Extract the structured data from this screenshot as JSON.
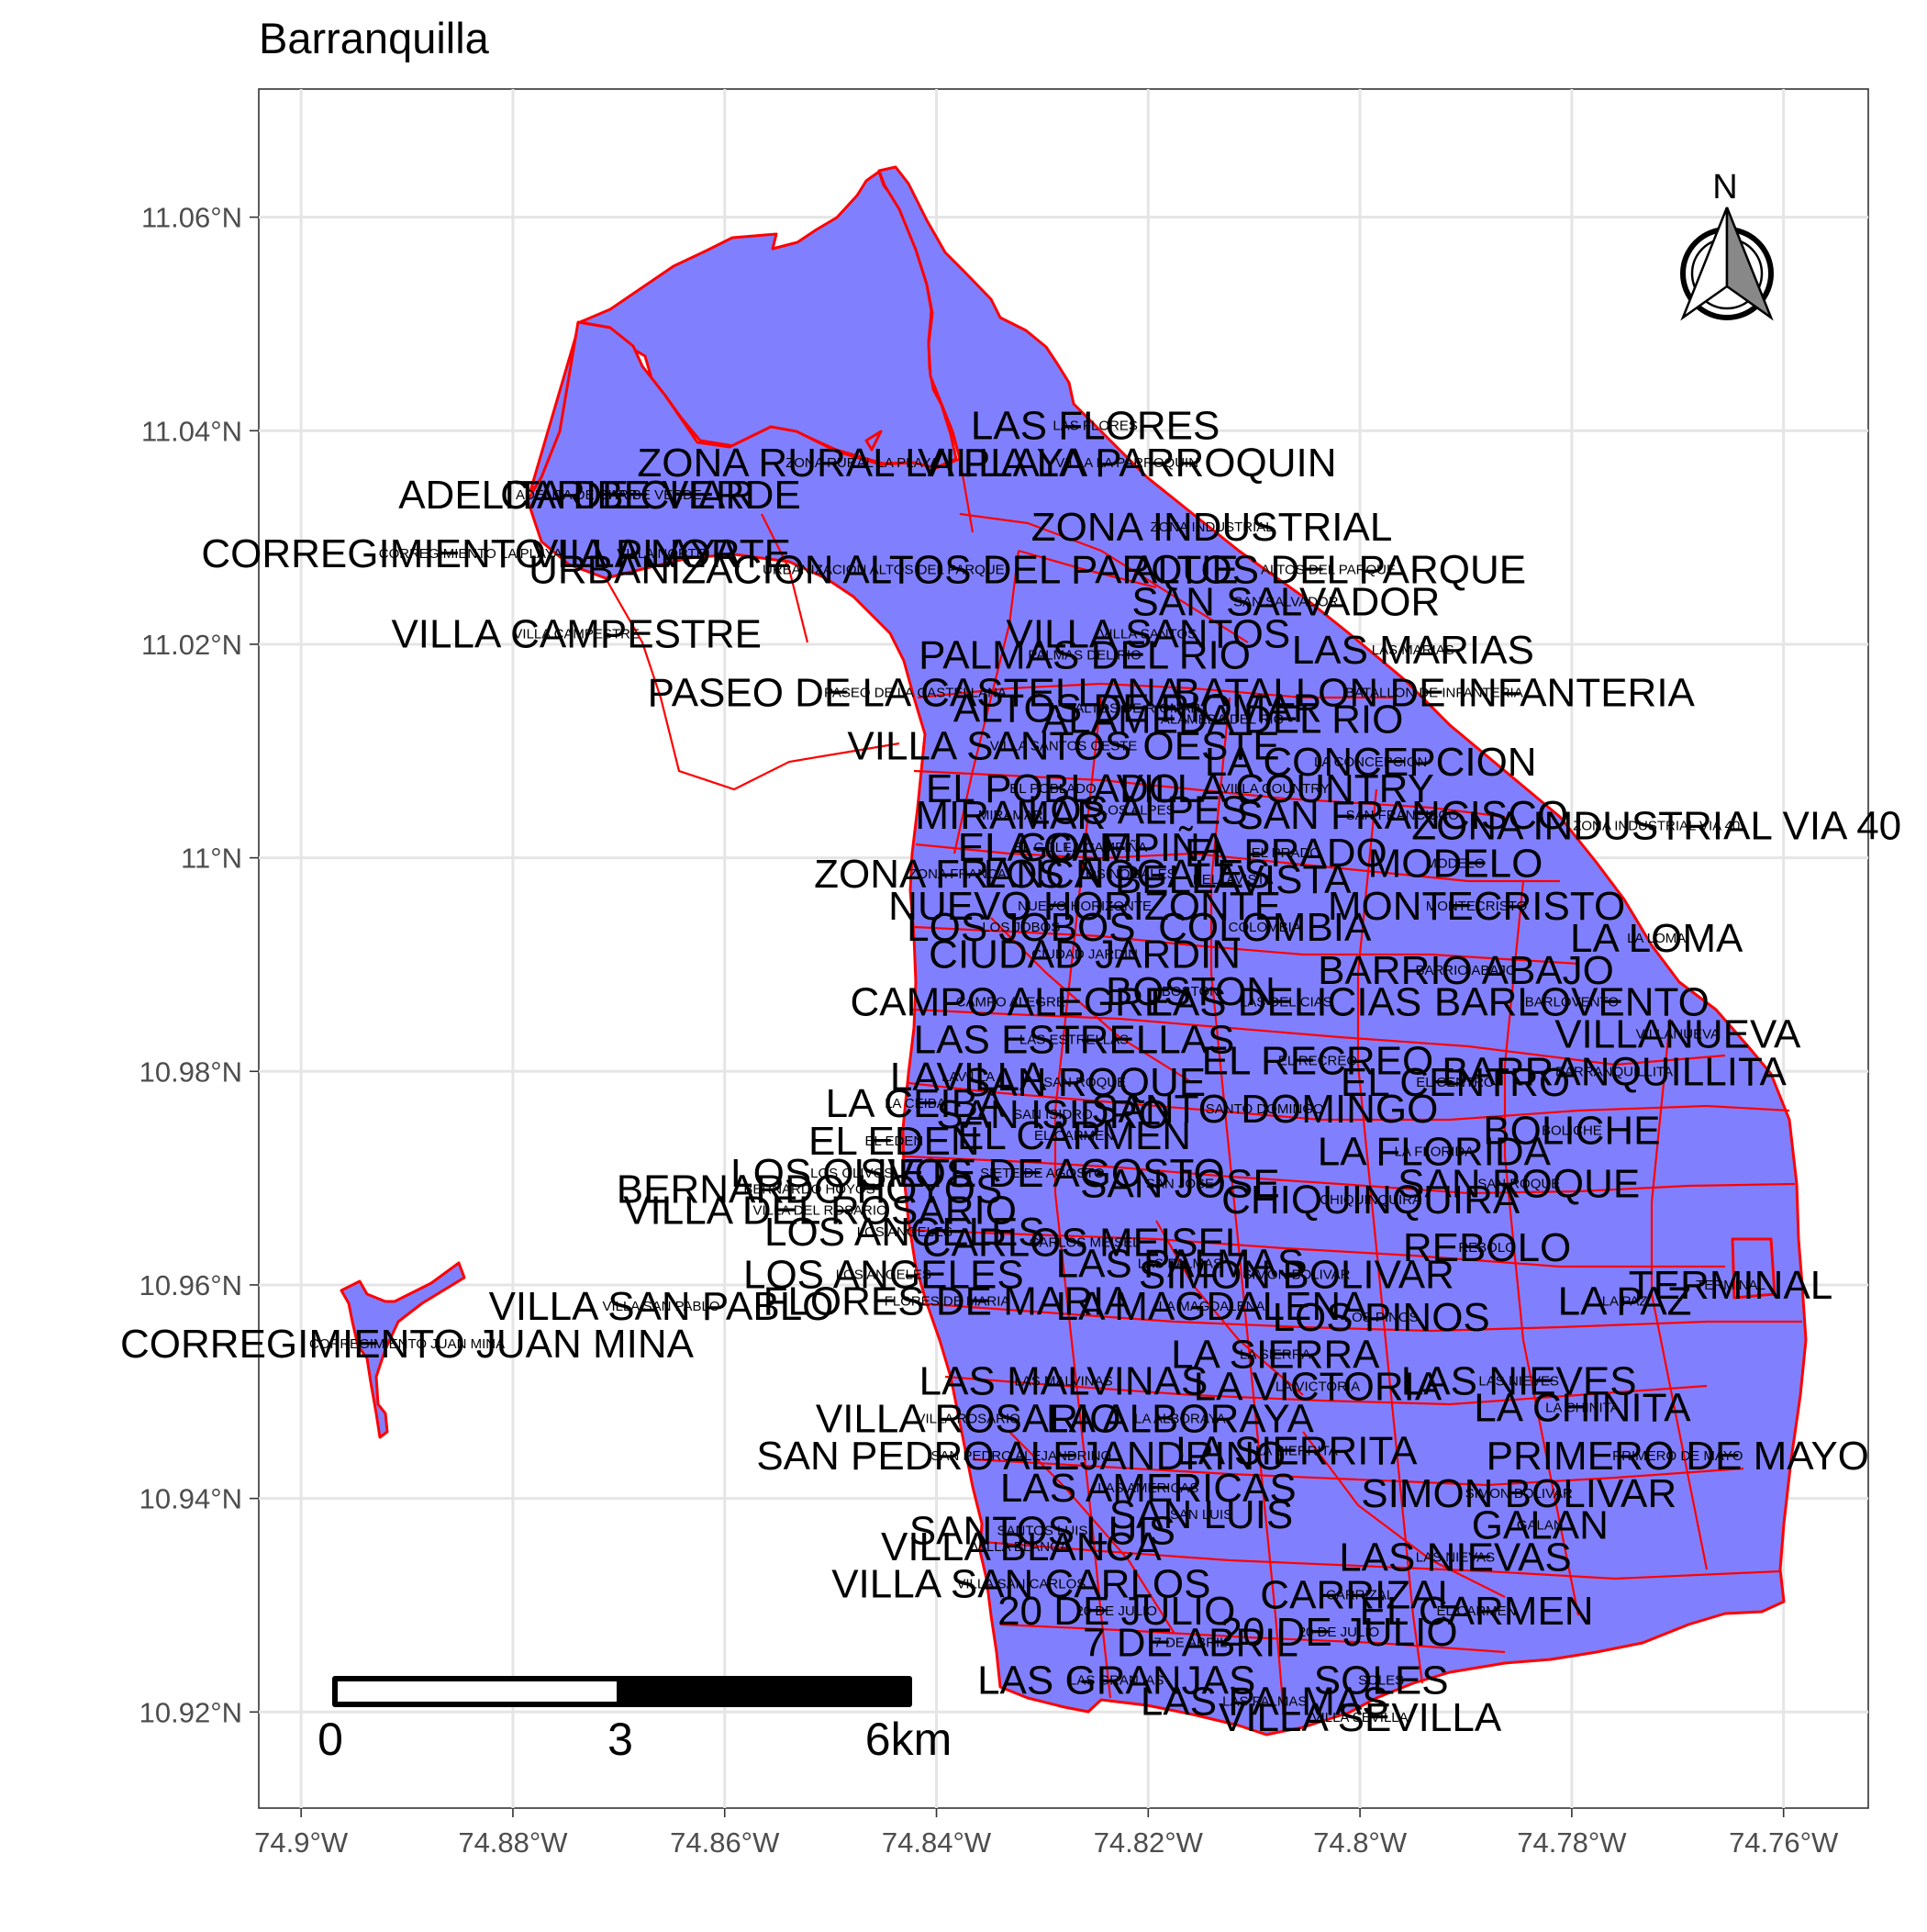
{
  "title": "Barranquilla",
  "axes": {
    "x_ticks": [
      "74.9°W",
      "74.88°W",
      "74.86°W",
      "74.84°W",
      "74.82°W",
      "74.8°W",
      "74.78°W",
      "74.76°W"
    ],
    "y_ticks": [
      "11.06°N",
      "11.04°N",
      "11.02°N",
      "11°N",
      "10.98°N",
      "10.96°N",
      "10.94°N",
      "10.92°N"
    ],
    "x_values": [
      -74.9,
      -74.88,
      -74.86,
      -74.84,
      -74.82,
      -74.8,
      -74.78,
      -74.76
    ],
    "y_values": [
      11.06,
      11.04,
      11.02,
      11.0,
      10.98,
      10.96,
      10.94,
      10.92
    ],
    "xlim": [
      -74.904,
      -74.752
    ],
    "ylim": [
      10.911,
      11.072
    ]
  },
  "colors": {
    "fill": "#8080ff",
    "border": "#ff0000"
  },
  "north_arrow": {
    "letter": "N"
  },
  "scale_bar": {
    "labels": [
      "0",
      "3",
      "6km"
    ]
  },
  "neighborhoods": [
    {
      "name": "LAS FLORES",
      "lon": -74.825,
      "lat": 11.0405
    },
    {
      "name": "ZONA RURAL LA PLAYA",
      "lon": -74.847,
      "lat": 11.037
    },
    {
      "name": "VILLA LA PARROQUIN",
      "lon": -74.822,
      "lat": 11.037
    },
    {
      "name": "ADELITA DE CHAR",
      "lon": -74.874,
      "lat": 11.034
    },
    {
      "name": "CARIBE VERDE",
      "lon": -74.867,
      "lat": 11.034
    },
    {
      "name": "CORREGIMIENTO LA PLAYA",
      "lon": -74.884,
      "lat": 11.0285
    },
    {
      "name": "VILLA NORTE",
      "lon": -74.866,
      "lat": 11.0285
    },
    {
      "name": "URBANIZACION ALTOS DEL PARQUE",
      "lon": -74.845,
      "lat": 11.027
    },
    {
      "name": "ZONA INDUSTRIAL",
      "lon": -74.814,
      "lat": 11.031
    },
    {
      "name": "ALTOS DEL PARQUE",
      "lon": -74.803,
      "lat": 11.027
    },
    {
      "name": "VILLA CAMPESTRE",
      "lon": -74.874,
      "lat": 11.021
    },
    {
      "name": "SAN SALVADOR",
      "lon": -74.807,
      "lat": 11.024
    },
    {
      "name": "VILLA SANTOS",
      "lon": -74.82,
      "lat": 11.021
    },
    {
      "name": "LAS MARIAS",
      "lon": -74.795,
      "lat": 11.0195
    },
    {
      "name": "PALMAS DEL RIO",
      "lon": -74.826,
      "lat": 11.019
    },
    {
      "name": "PASEO DE LA CASTELLANA",
      "lon": -74.842,
      "lat": 11.0155
    },
    {
      "name": "ALTOS DE RIOMAR",
      "lon": -74.821,
      "lat": 11.014
    },
    {
      "name": "BATALLON DE INFANTERIA",
      "lon": -74.793,
      "lat": 11.0155
    },
    {
      "name": "VILLA SANTOS OESTE",
      "lon": -74.828,
      "lat": 11.0105
    },
    {
      "name": "ALAMEDA DEL RIO",
      "lon": -74.813,
      "lat": 11.013
    },
    {
      "name": "LA CONCEPCION",
      "lon": -74.799,
      "lat": 11.009
    },
    {
      "name": "EL POBLADO",
      "lon": -74.829,
      "lat": 11.0065
    },
    {
      "name": "VILLA COUNTRY",
      "lon": -74.808,
      "lat": 11.0065
    },
    {
      "name": "MIRAMAR",
      "lon": -74.833,
      "lat": 11.004
    },
    {
      "name": "LOS ALPES",
      "lon": -74.821,
      "lat": 11.0045
    },
    {
      "name": "SAN FRANCISCO",
      "lon": -74.796,
      "lat": 11.004
    },
    {
      "name": "ZONA INDUSTRIAL VIA 40",
      "lon": -74.772,
      "lat": 11.003
    },
    {
      "name": "EL GOLF",
      "lon": -74.83,
      "lat": 11.001
    },
    {
      "name": "LA CAMPIÑA",
      "lon": -74.824,
      "lat": 11.001
    },
    {
      "name": "EL PRADO",
      "lon": -74.807,
      "lat": 11.0005
    },
    {
      "name": "MODELO",
      "lon": -74.791,
      "lat": 10.9995
    },
    {
      "name": "ZONA FRANCA",
      "lon": -74.838,
      "lat": 10.9985
    },
    {
      "name": "LOS NOGALES",
      "lon": -74.822,
      "lat": 10.9985
    },
    {
      "name": "BELLAVISTA",
      "lon": -74.812,
      "lat": 10.998
    },
    {
      "name": "NUEVO HORIZONTE",
      "lon": -74.826,
      "lat": 10.9955
    },
    {
      "name": "MONTECRISTO",
      "lon": -74.789,
      "lat": 10.9955
    },
    {
      "name": "LOS JOBOS",
      "lon": -74.832,
      "lat": 10.9935
    },
    {
      "name": "COLOMBIA",
      "lon": -74.809,
      "lat": 10.9935
    },
    {
      "name": "LA LOMA",
      "lon": -74.772,
      "lat": 10.9925
    },
    {
      "name": "CIUDAD JARDIN",
      "lon": -74.826,
      "lat": 10.991
    },
    {
      "name": "BARRIO ABAJO",
      "lon": -74.79,
      "lat": 10.9895
    },
    {
      "name": "CAMPO ALEGRE",
      "lon": -74.833,
      "lat": 10.9865
    },
    {
      "name": "BOSTON",
      "lon": -74.816,
      "lat": 10.9875
    },
    {
      "name": "LAS DELICIAS",
      "lon": -74.807,
      "lat": 10.9865
    },
    {
      "name": "BARLOVENTO",
      "lon": -74.78,
      "lat": 10.9865
    },
    {
      "name": "VILLANUEVA",
      "lon": -74.77,
      "lat": 10.9835
    },
    {
      "name": "LAS ESTRELLAS",
      "lon": -74.827,
      "lat": 10.983
    },
    {
      "name": "EL RECREO",
      "lon": -74.804,
      "lat": 10.981
    },
    {
      "name": "LAVILLA",
      "lon": -74.837,
      "lat": 10.9795
    },
    {
      "name": "SAN ROQUE",
      "lon": -74.826,
      "lat": 10.979
    },
    {
      "name": "EL CENTRO",
      "lon": -74.791,
      "lat": 10.979
    },
    {
      "name": "BARRANQUILLITA",
      "lon": -74.776,
      "lat": 10.98
    },
    {
      "name": "LA CEIBA",
      "lon": -74.842,
      "lat": 10.977
    },
    {
      "name": "SAN ISIDRO",
      "lon": -74.829,
      "lat": 10.976
    },
    {
      "name": "SANTO DOMINGO",
      "lon": -74.809,
      "lat": 10.9765
    },
    {
      "name": "BOLICHE",
      "lon": -74.78,
      "lat": 10.9745
    },
    {
      "name": "EL CARMEN",
      "lon": -74.827,
      "lat": 10.974
    },
    {
      "name": "LA FLORIDA",
      "lon": -74.793,
      "lat": 10.9725
    },
    {
      "name": "EL EDEN",
      "lon": -74.844,
      "lat": 10.9735
    },
    {
      "name": "LOS OLIVOS",
      "lon": -74.848,
      "lat": 10.9705
    },
    {
      "name": "SIETE DE AGOSTO",
      "lon": -74.83,
      "lat": 10.9705
    },
    {
      "name": "SAN ROQUE",
      "lon": -74.785,
      "lat": 10.9695
    },
    {
      "name": "BERNARDO HOYOS",
      "lon": -74.852,
      "lat": 10.969
    },
    {
      "name": "SAN JOSE",
      "lon": -74.817,
      "lat": 10.9695
    },
    {
      "name": "CHIQUINQUIRA",
      "lon": -74.799,
      "lat": 10.968
    },
    {
      "name": "VILLA DEL ROSARIO",
      "lon": -74.851,
      "lat": 10.967
    },
    {
      "name": "LOS ANGELES",
      "lon": -74.843,
      "lat": 10.965
    },
    {
      "name": "CARLOS MEISEL",
      "lon": -74.826,
      "lat": 10.964
    },
    {
      "name": "REBOLO",
      "lon": -74.788,
      "lat": 10.9635
    },
    {
      "name": "LOS ANGELES",
      "lon": -74.845,
      "lat": 10.961
    },
    {
      "name": "LAS PALMAS",
      "lon": -74.817,
      "lat": 10.962
    },
    {
      "name": "SIMON BOLIVAR",
      "lon": -74.806,
      "lat": 10.961
    },
    {
      "name": "VILLA SAN PABLO",
      "lon": -74.866,
      "lat": 10.958
    },
    {
      "name": "FLORES DE MARIA",
      "lon": -74.839,
      "lat": 10.9585
    },
    {
      "name": "LA MAGDALENA",
      "lon": -74.814,
      "lat": 10.958
    },
    {
      "name": "LA PAZ",
      "lon": -74.775,
      "lat": 10.9585
    },
    {
      "name": "TERMINAL",
      "lon": -74.765,
      "lat": 10.96
    },
    {
      "name": "LOS PINOS",
      "lon": -74.798,
      "lat": 10.957
    },
    {
      "name": "LA SIERRA",
      "lon": -74.808,
      "lat": 10.9535
    },
    {
      "name": "CORREGIMIENTO JUAN MINA",
      "lon": -74.89,
      "lat": 10.9545
    },
    {
      "name": "LAS MALVINAS",
      "lon": -74.828,
      "lat": 10.951
    },
    {
      "name": "LAS NIEVES",
      "lon": -74.785,
      "lat": 10.951
    },
    {
      "name": "LA VICTORIA",
      "lon": -74.804,
      "lat": 10.9505
    },
    {
      "name": "LA CHINITA",
      "lon": -74.779,
      "lat": 10.9485
    },
    {
      "name": "VILLA ROSARIO",
      "lon": -74.837,
      "lat": 10.9475
    },
    {
      "name": "LA ALBORAYA",
      "lon": -74.817,
      "lat": 10.9475
    },
    {
      "name": "SAN PEDRO ALEJANDRINO",
      "lon": -74.832,
      "lat": 10.944
    },
    {
      "name": "LA SIERRITA",
      "lon": -74.806,
      "lat": 10.9445
    },
    {
      "name": "PRIMERO DE MAYO",
      "lon": -74.77,
      "lat": 10.944
    },
    {
      "name": "LAS AMERICAS",
      "lon": -74.82,
      "lat": 10.941
    },
    {
      "name": "SIMON BOLIVAR",
      "lon": -74.785,
      "lat": 10.9405
    },
    {
      "name": "SAN LUIS",
      "lon": -74.815,
      "lat": 10.9385
    },
    {
      "name": "SANTOS LUIS",
      "lon": -74.83,
      "lat": 10.937
    },
    {
      "name": "VILLA BLANCA",
      "lon": -74.832,
      "lat": 10.9355
    },
    {
      "name": "GALAN",
      "lon": -74.783,
      "lat": 10.9375
    },
    {
      "name": "LAS NIEVAS",
      "lon": -74.791,
      "lat": 10.9345
    },
    {
      "name": "VILLA SAN CARLOS",
      "lon": -74.832,
      "lat": 10.932
    },
    {
      "name": "CARRIZAL",
      "lon": -74.8,
      "lat": 10.931
    },
    {
      "name": "20 DE JULIO",
      "lon": -74.823,
      "lat": 10.9295
    },
    {
      "name": "EL CARMEN",
      "lon": -74.789,
      "lat": 10.9295
    },
    {
      "name": "20 DE JULIO",
      "lon": -74.802,
      "lat": 10.9275
    },
    {
      "name": "7 DE ABRIL",
      "lon": -74.816,
      "lat": 10.9265
    },
    {
      "name": "LAS GRANJAS",
      "lon": -74.823,
      "lat": 10.923
    },
    {
      "name": "SOLES",
      "lon": -74.798,
      "lat": 10.923
    },
    {
      "name": "LAS PALMAS",
      "lon": -74.809,
      "lat": 10.921
    },
    {
      "name": "VILLA SEVILLA",
      "lon": -74.8,
      "lat": 10.9195
    }
  ]
}
